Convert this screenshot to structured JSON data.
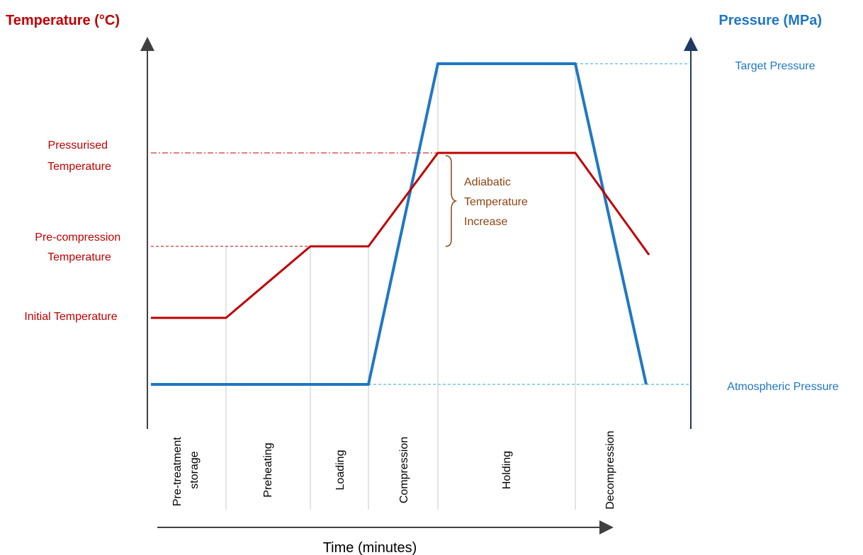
{
  "colors": {
    "temperature": "#c00000",
    "pressure": "#1f77c4",
    "axis_left": "#404040",
    "axis_right": "#1f3864",
    "annotation": "#8b4513",
    "phase_line": "#c8c8c8",
    "text": "#000000"
  },
  "axes": {
    "left_title": "Temperature (°C)",
    "right_title": "Pressure (MPa)",
    "x_title": "Time (minutes)"
  },
  "temperature_labels": {
    "pressurised": [
      "Pressurised",
      "Temperature"
    ],
    "precompression": [
      "Pre-compression",
      "Temperature"
    ],
    "initial": "Initial Temperature"
  },
  "pressure_labels": {
    "target": "Target Pressure",
    "atmospheric": "Atmospheric Pressure"
  },
  "annotation": [
    "Adiabatic",
    "Temperature",
    "Increase"
  ],
  "phases": [
    {
      "lines": [
        "Pre-treatment",
        "storage"
      ]
    },
    {
      "lines": [
        "Preheating"
      ]
    },
    {
      "lines": [
        "Loading"
      ]
    },
    {
      "lines": [
        "Compression"
      ]
    },
    {
      "lines": [
        "Holding"
      ]
    },
    {
      "lines": [
        "Decompression"
      ]
    }
  ]
}
